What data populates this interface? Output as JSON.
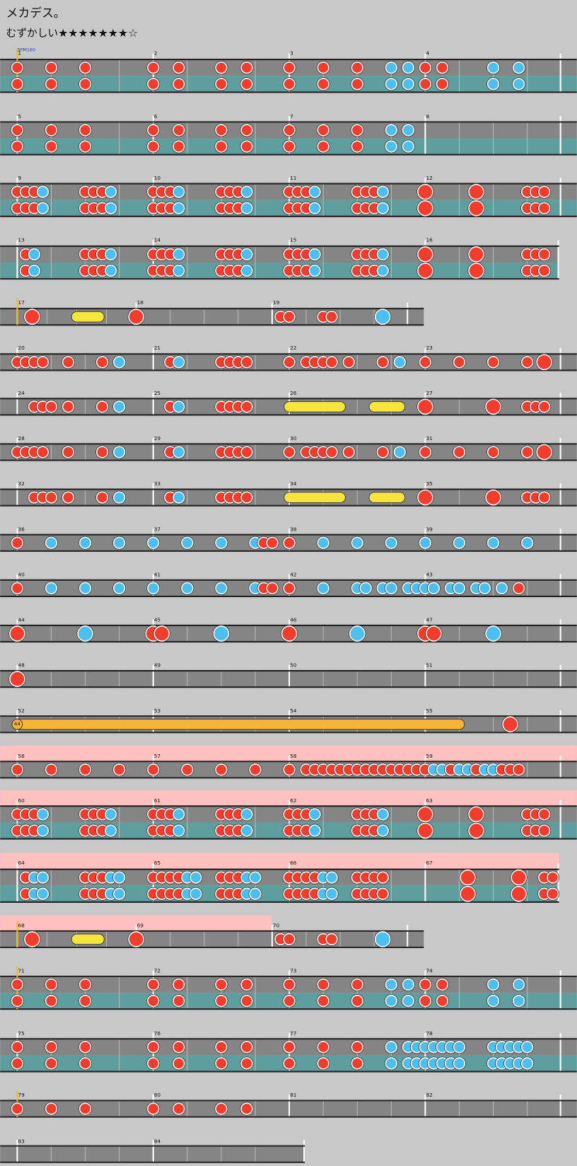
{
  "header": {
    "title": "メカデス。",
    "difficulty": "むずかしい",
    "stars": "★★★★★★★☆"
  },
  "bpm_label": "BPM160",
  "balloon_hits": 44,
  "rows": [
    {
      "measures": [
        1,
        2,
        3,
        4
      ]
    },
    {
      "measures": [
        5,
        6,
        7,
        8
      ]
    },
    {
      "measures": [
        9,
        10,
        11,
        12
      ]
    },
    {
      "measures": [
        13,
        14,
        15,
        16
      ]
    },
    {
      "measures": [
        17,
        18,
        19
      ]
    },
    {
      "measures": [
        20,
        21,
        22,
        23
      ]
    },
    {
      "measures": [
        24,
        25,
        26,
        27
      ]
    },
    {
      "measures": [
        28,
        29,
        30,
        31
      ]
    },
    {
      "measures": [
        32,
        33,
        34,
        35
      ]
    },
    {
      "measures": [
        36,
        37,
        38,
        39
      ]
    },
    {
      "measures": [
        40,
        41,
        42,
        43
      ]
    },
    {
      "measures": [
        44,
        45,
        46,
        47
      ]
    },
    {
      "measures": [
        48,
        49,
        50,
        51
      ]
    },
    {
      "measures": [
        52,
        53,
        54,
        55
      ]
    },
    {
      "measures": [
        56,
        57,
        58,
        59
      ]
    },
    {
      "measures": [
        60,
        61,
        62,
        63
      ]
    },
    {
      "measures": [
        64,
        65,
        66,
        67
      ]
    },
    {
      "measures": [
        68,
        69,
        70
      ]
    },
    {
      "measures": [
        71,
        72,
        73,
        74
      ]
    },
    {
      "measures": [
        75,
        76,
        77,
        78
      ]
    },
    {
      "measures": [
        79,
        80,
        81,
        82
      ]
    },
    {
      "measures": [
        83,
        84
      ]
    }
  ]
}
